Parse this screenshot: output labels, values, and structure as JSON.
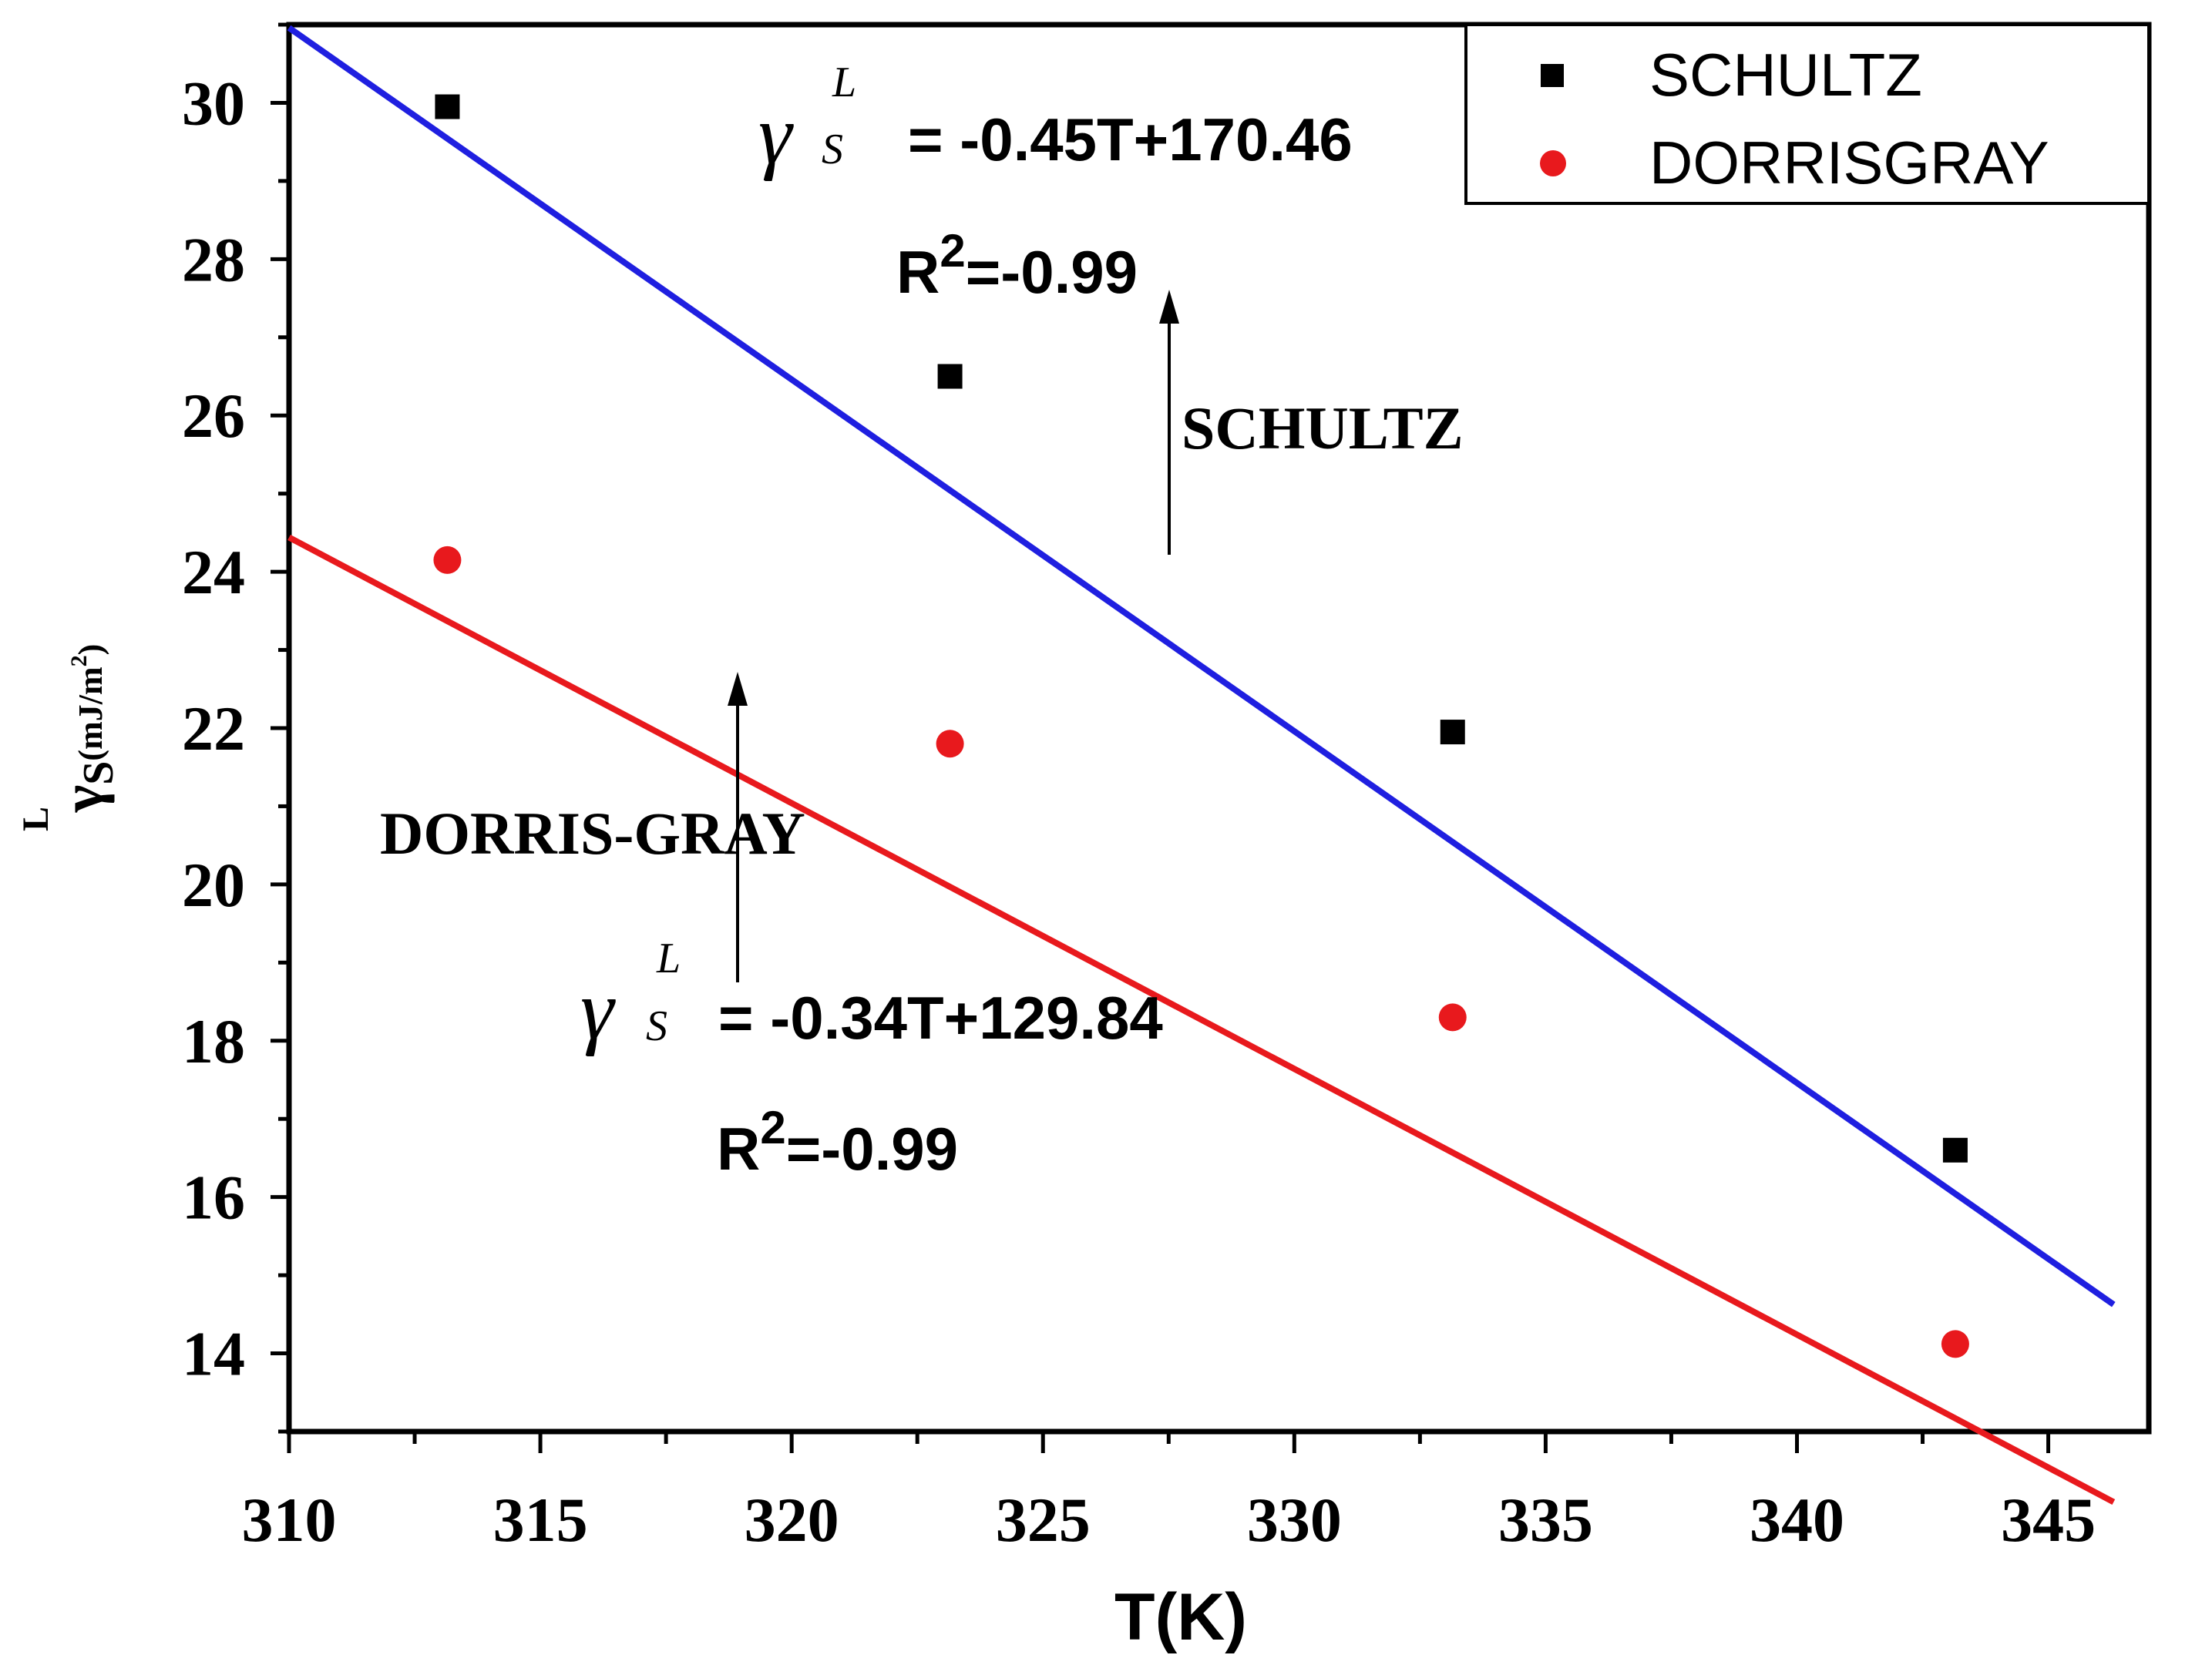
{
  "chart_data": {
    "type": "scatter",
    "x": [
      313.15,
      323.15,
      333.15,
      343.15
    ],
    "series": [
      {
        "name": "SCHULTZ",
        "marker": "square",
        "color": "#000000",
        "values": [
          29.95,
          26.5,
          21.95,
          16.6
        ],
        "fit": {
          "slope": -0.45,
          "intercept": 170.46,
          "line_color": "#1f1fe0"
        }
      },
      {
        "name": "DORRISGRAY",
        "marker": "circle",
        "color": "#e8191d",
        "values": [
          24.15,
          21.8,
          18.3,
          14.12
        ],
        "fit": {
          "slope": -0.34,
          "intercept": 129.84,
          "line_color": "#e8191d"
        }
      }
    ],
    "xlim": [
      310,
      347
    ],
    "ylim": [
      13,
      31
    ],
    "xticks": [
      "310",
      "315",
      "320",
      "325",
      "330",
      "335",
      "340",
      "345"
    ],
    "yticks": [
      "14",
      "16",
      "18",
      "20",
      "22",
      "24",
      "26",
      "28",
      "30"
    ],
    "xlabel": "T(K)",
    "ylabel": {
      "symbol": "γ",
      "superscript": "L",
      "subscript": "S",
      "unit": "(mJ/m",
      "unit_power": "2",
      "unit_close": ")"
    },
    "legend": {
      "position": "top-right",
      "entries": [
        "SCHULTZ",
        "DORRISGRAY"
      ]
    },
    "annotations": {
      "schultz": {
        "label": "SCHULTZ",
        "eq_symbol": "γ",
        "eq_sup": "L",
        "eq_sub": "S",
        "equation": "= -0.45T+170.46",
        "r2_prefix": "R",
        "r2_power": "2",
        "r2_value": "=-0.99"
      },
      "dorris": {
        "label": "DORRIS-GRAY",
        "eq_symbol": "γ",
        "eq_sup": "L",
        "eq_sub": "S",
        "equation": "= -0.34T+129.84",
        "r2_prefix": "R",
        "r2_power": "2",
        "r2_value": "=-0.99"
      }
    }
  }
}
